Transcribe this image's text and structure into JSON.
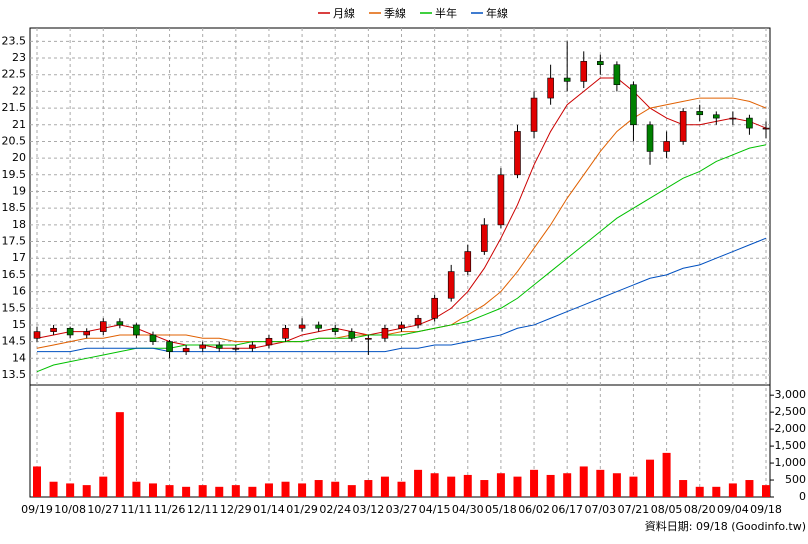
{
  "chart_data": {
    "type": "candlestick",
    "categories": [
      "09/19",
      null,
      "10/08",
      null,
      "10/27",
      null,
      "11/11",
      null,
      "11/26",
      null,
      "12/11",
      null,
      "12/29",
      null,
      "01/14",
      null,
      "01/29",
      null,
      "02/24",
      null,
      "03/12",
      null,
      "03/27",
      null,
      "04/15",
      null,
      "04/30",
      null,
      "05/18",
      null,
      "06/02",
      null,
      "06/17",
      null,
      "07/03",
      null,
      "07/21",
      null,
      "08/05",
      null,
      "08/20",
      null,
      "09/04",
      null,
      "09/18"
    ],
    "open": [
      14.6,
      14.8,
      14.9,
      14.7,
      14.8,
      15.1,
      15.0,
      14.7,
      14.5,
      14.2,
      14.3,
      14.4,
      14.3,
      14.3,
      14.4,
      14.6,
      14.9,
      15.0,
      14.9,
      14.8,
      14.6,
      14.6,
      14.9,
      15.0,
      15.2,
      15.8,
      16.6,
      17.2,
      18.0,
      19.5,
      20.8,
      21.8,
      22.4,
      22.3,
      22.9,
      22.8,
      22.2,
      21.0,
      20.2,
      20.5,
      21.4,
      21.3,
      21.2,
      21.2,
      20.9
    ],
    "high": [
      14.95,
      15.0,
      14.95,
      14.9,
      15.2,
      15.2,
      15.05,
      14.8,
      14.55,
      14.4,
      14.5,
      14.5,
      14.4,
      14.5,
      14.7,
      15.0,
      15.2,
      15.1,
      15.0,
      14.9,
      14.7,
      15.0,
      15.1,
      15.3,
      15.9,
      16.8,
      17.4,
      18.2,
      19.7,
      21.0,
      22.0,
      22.8,
      23.5,
      23.2,
      23.1,
      22.9,
      22.3,
      21.1,
      20.8,
      21.5,
      21.6,
      21.4,
      21.4,
      21.3,
      21.1
    ],
    "low": [
      14.5,
      14.7,
      14.6,
      14.6,
      14.7,
      14.9,
      14.6,
      14.4,
      14.0,
      14.1,
      14.2,
      14.2,
      14.2,
      14.2,
      14.3,
      14.5,
      14.8,
      14.8,
      14.7,
      14.5,
      14.1,
      14.5,
      14.8,
      14.9,
      15.1,
      15.7,
      16.5,
      17.1,
      17.9,
      19.4,
      20.6,
      21.6,
      22.0,
      22.1,
      22.5,
      22.0,
      20.5,
      19.8,
      20.0,
      20.4,
      21.1,
      21.0,
      21.0,
      20.7,
      20.6
    ],
    "close": [
      14.8,
      14.9,
      14.7,
      14.8,
      15.1,
      15.0,
      14.7,
      14.5,
      14.2,
      14.3,
      14.4,
      14.3,
      14.3,
      14.4,
      14.6,
      14.9,
      15.0,
      14.9,
      14.8,
      14.6,
      14.6,
      14.9,
      15.0,
      15.2,
      15.8,
      16.6,
      17.2,
      18.0,
      19.5,
      20.8,
      21.8,
      22.4,
      22.3,
      22.9,
      22.8,
      22.2,
      21.0,
      20.2,
      20.5,
      21.4,
      21.3,
      21.2,
      21.2,
      20.9,
      20.9
    ],
    "up_color": "#e00000",
    "down_color": "#008000",
    "series": [
      {
        "name": "月線",
        "color": "#cc0000",
        "values": [
          14.6,
          14.7,
          14.8,
          14.8,
          14.9,
          15.0,
          14.9,
          14.7,
          14.5,
          14.4,
          14.4,
          14.3,
          14.3,
          14.3,
          14.4,
          14.5,
          14.7,
          14.8,
          14.9,
          14.8,
          14.7,
          14.8,
          14.9,
          15.0,
          15.2,
          15.5,
          16.0,
          16.7,
          17.6,
          18.6,
          19.8,
          20.8,
          21.6,
          22.0,
          22.4,
          22.4,
          22.0,
          21.5,
          21.2,
          21.0,
          21.0,
          21.1,
          21.2,
          21.1,
          20.9
        ]
      },
      {
        "name": "季線",
        "color": "#e06000",
        "values": [
          14.3,
          14.4,
          14.5,
          14.6,
          14.6,
          14.7,
          14.7,
          14.7,
          14.7,
          14.7,
          14.6,
          14.6,
          14.5,
          14.5,
          14.5,
          14.5,
          14.5,
          14.6,
          14.6,
          14.7,
          14.7,
          14.7,
          14.8,
          14.8,
          14.9,
          15.0,
          15.3,
          15.6,
          16.0,
          16.6,
          17.3,
          18.0,
          18.8,
          19.5,
          20.2,
          20.8,
          21.2,
          21.5,
          21.6,
          21.7,
          21.8,
          21.8,
          21.8,
          21.7,
          21.5
        ]
      },
      {
        "name": "半年",
        "color": "#00c000",
        "values": [
          13.6,
          13.8,
          13.9,
          14.0,
          14.1,
          14.2,
          14.3,
          14.3,
          14.3,
          14.4,
          14.4,
          14.4,
          14.4,
          14.5,
          14.5,
          14.5,
          14.5,
          14.6,
          14.6,
          14.6,
          14.7,
          14.7,
          14.7,
          14.8,
          14.9,
          15.0,
          15.1,
          15.3,
          15.5,
          15.8,
          16.2,
          16.6,
          17.0,
          17.4,
          17.8,
          18.2,
          18.5,
          18.8,
          19.1,
          19.4,
          19.6,
          19.9,
          20.1,
          20.3,
          20.4
        ]
      },
      {
        "name": "年線",
        "color": "#0050c0",
        "values": [
          14.2,
          14.2,
          14.2,
          14.3,
          14.3,
          14.3,
          14.3,
          14.3,
          14.2,
          14.2,
          14.2,
          14.2,
          14.2,
          14.2,
          14.2,
          14.2,
          14.2,
          14.2,
          14.2,
          14.2,
          14.2,
          14.2,
          14.3,
          14.3,
          14.4,
          14.4,
          14.5,
          14.6,
          14.7,
          14.9,
          15.0,
          15.2,
          15.4,
          15.6,
          15.8,
          16.0,
          16.2,
          16.4,
          16.5,
          16.7,
          16.8,
          17.0,
          17.2,
          17.4,
          17.6
        ]
      }
    ],
    "ylim": [
      13.2,
      23.9
    ],
    "yticks": [
      13.5,
      14,
      14.5,
      15,
      15.5,
      16,
      16.5,
      17,
      17.5,
      18,
      18.5,
      19,
      19.5,
      20,
      20.5,
      21,
      21.5,
      22,
      22.5,
      23,
      23.5
    ],
    "volume": {
      "color": "#ff0000",
      "values": [
        900,
        450,
        400,
        350,
        600,
        2500,
        450,
        400,
        350,
        300,
        350,
        300,
        350,
        300,
        400,
        450,
        400,
        500,
        450,
        350,
        500,
        600,
        450,
        800,
        700,
        600,
        650,
        500,
        700,
        600,
        800,
        650,
        700,
        900,
        800,
        700,
        600,
        1100,
        1300,
        500,
        300,
        300,
        400,
        500,
        350
      ],
      "ylim": [
        0,
        3300
      ],
      "yticks": [
        0,
        500,
        {
          "value": 1000,
          "label": "1,000"
        },
        {
          "value": 1500,
          "label": "1,500"
        },
        {
          "value": 2000,
          "label": "2,000"
        },
        {
          "value": 2500,
          "label": "2,500"
        },
        {
          "value": 3000,
          "label": "3,000"
        }
      ]
    },
    "grid": true,
    "footer": "資料日期: 09/18 (Goodinfo.tw)"
  }
}
